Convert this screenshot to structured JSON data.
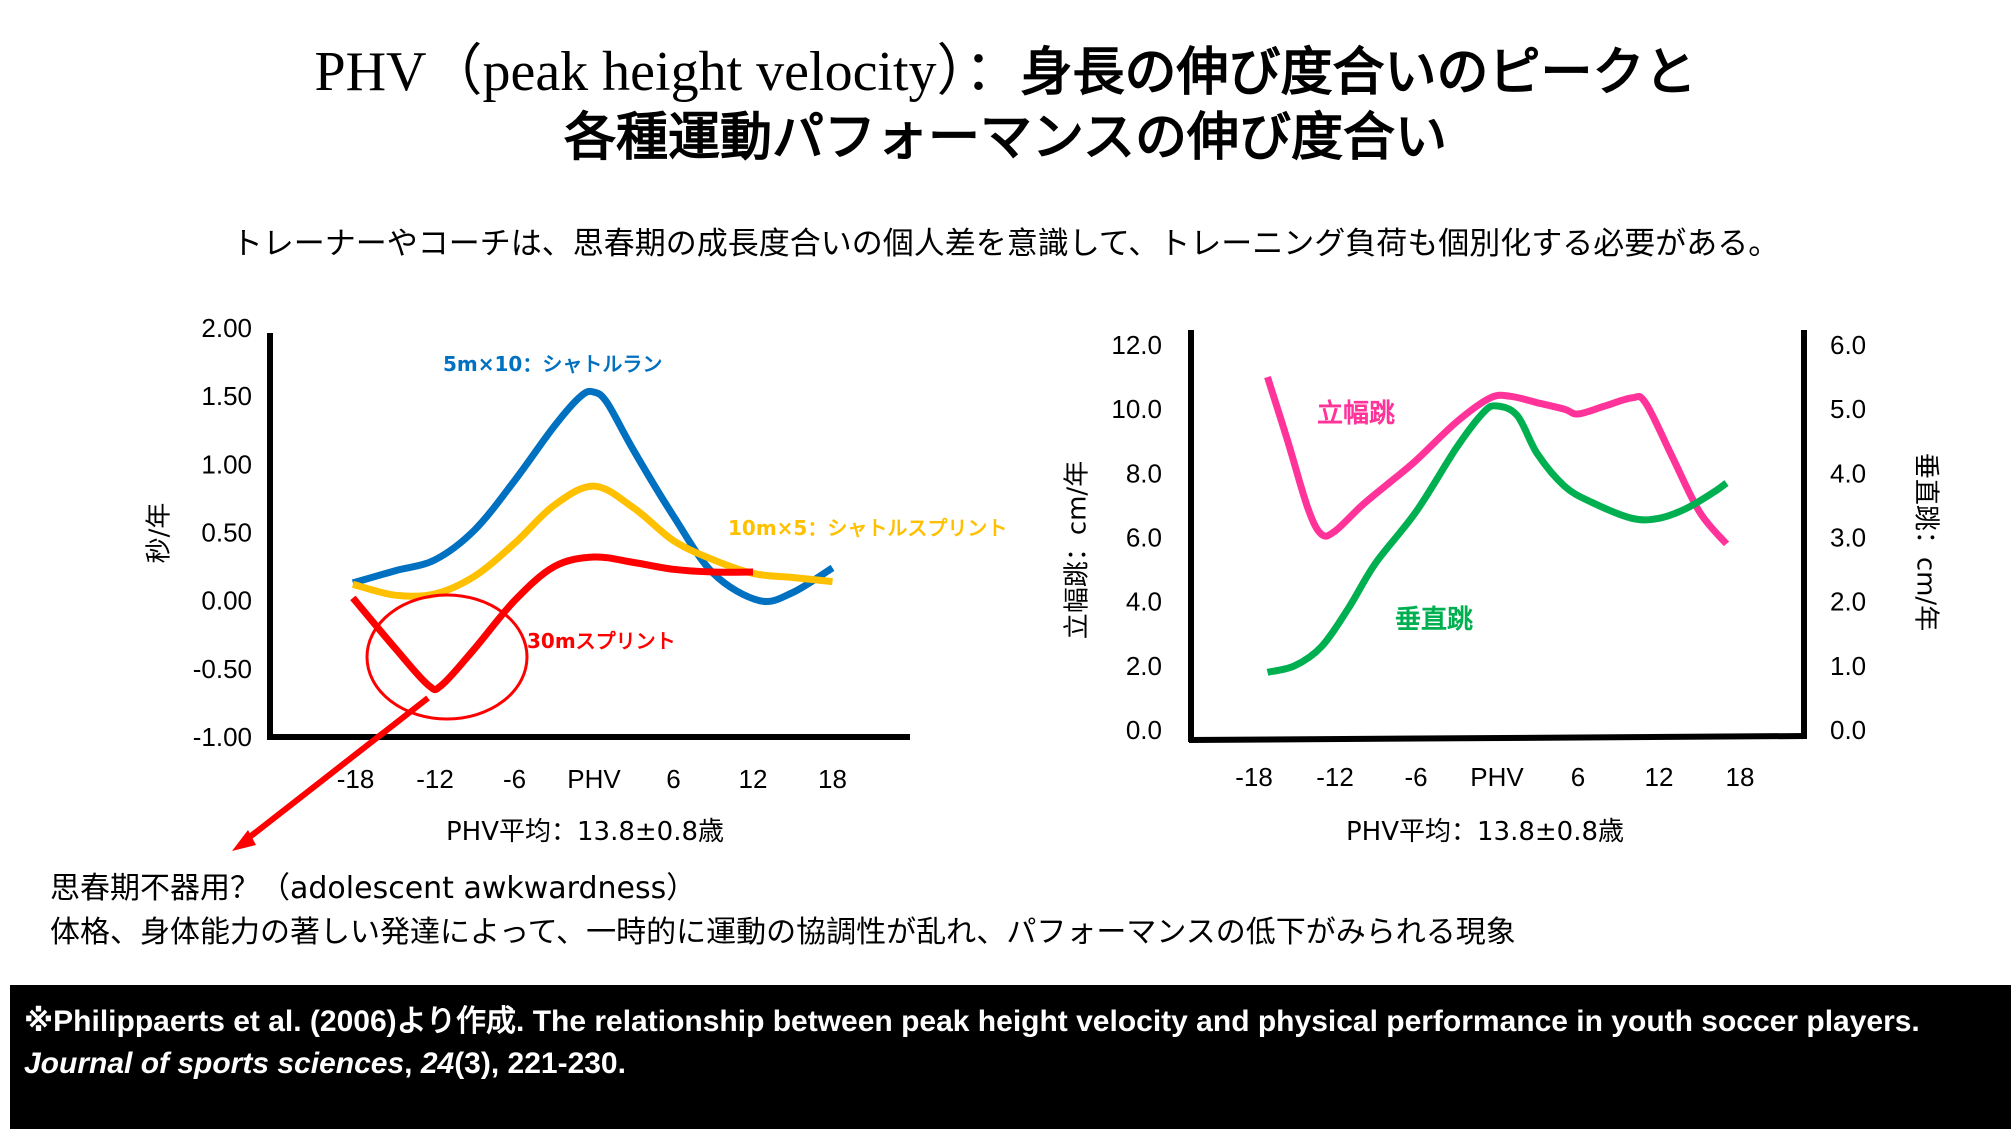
{
  "title": {
    "line1_latin": "PHV（peak height velocity）：",
    "line1_jp": "身長の伸び度合いのピークと",
    "line2": "各種運動パフォーマンスの伸び度合い"
  },
  "subtitle": "トレーナーやコーチは、思春期の成長度合いの個人差を意識して、トレーニング負荷も個別化する必要がある。",
  "notes": {
    "line1": "思春期不器用？（adolescent awkwardness）",
    "line2": "体格、身体能力の著しい発達によって、一時的に運動の協調性が乱れ、パフォーマンスの低下がみられる現象"
  },
  "footer": {
    "part1": "※Philippaerts et al. (2006)より作成. The relationship between peak height velocity and physical performance in youth soccer players. ",
    "journal": "Journal of sports sciences",
    "part2": ", ",
    "volume": "24",
    "part3": "(3), 221-230."
  },
  "chart_data": [
    {
      "type": "line",
      "title": "",
      "ylabel": "秒/年",
      "xlabel": "PHV平均：13.8±0.8歳",
      "x_ticks": [
        -18,
        -12,
        -6,
        0,
        6,
        12,
        18
      ],
      "x_tick_labels": [
        "-18",
        "-12",
        "-6",
        "PHV",
        "6",
        "12",
        "18"
      ],
      "y_ticks": [
        2.0,
        1.5,
        1.0,
        0.5,
        0.0,
        -0.5,
        -1.0
      ],
      "y_tick_labels": [
        "2.00",
        "1.50",
        "1.00",
        "0.50",
        "0.00",
        "-0.50",
        "-1.00"
      ],
      "ylim": [
        -1.0,
        2.0
      ],
      "xlim": [
        -24,
        24
      ],
      "grid": false,
      "series": [
        {
          "name": "5m×10：シャトルラン",
          "color": "#0070C0",
          "x": [
            -18.2,
            -15,
            -12,
            -9,
            -6,
            -3,
            -1,
            0,
            1,
            3,
            6,
            9,
            12.5,
            15,
            18
          ],
          "values": [
            0.13,
            0.22,
            0.3,
            0.52,
            0.88,
            1.28,
            1.5,
            1.53,
            1.45,
            1.1,
            0.62,
            0.2,
            0.0,
            0.06,
            0.24
          ]
        },
        {
          "name": "10m×5：シャトルスプリント",
          "color": "#FFC000",
          "x": [
            -18.2,
            -15,
            -12,
            -9,
            -6,
            -3,
            0,
            3,
            6,
            9,
            12,
            15,
            18
          ],
          "values": [
            0.12,
            0.04,
            0.05,
            0.18,
            0.42,
            0.7,
            0.84,
            0.68,
            0.44,
            0.3,
            0.2,
            0.17,
            0.14
          ]
        },
        {
          "name": "30mスプリント",
          "color": "#FF0000",
          "x": [
            -18.2,
            -15,
            -12.5,
            -11.5,
            -9,
            -6,
            -3,
            0,
            3,
            6,
            9,
            12
          ],
          "values": [
            0.02,
            -0.35,
            -0.62,
            -0.62,
            -0.35,
            0.0,
            0.25,
            0.32,
            0.28,
            0.23,
            0.21,
            0.21
          ]
        }
      ],
      "annotations": [
        "30mスプリント dip circled (思春期不器用)"
      ]
    },
    {
      "type": "line",
      "title": "",
      "ylabel": "立幅跳：cm/年",
      "ylabel_right": "垂直跳：cm/年",
      "xlabel": "PHV平均：13.8±0.8歳",
      "x_ticks": [
        -18,
        -12,
        -6,
        0,
        6,
        12,
        18
      ],
      "x_tick_labels": [
        "-18",
        "-12",
        "-6",
        "PHV",
        "6",
        "12",
        "18"
      ],
      "y_ticks": [
        12.0,
        10.0,
        8.0,
        6.0,
        4.0,
        2.0,
        0.0
      ],
      "y_tick_labels": [
        "12.0",
        "10.0",
        "8.0",
        "6.0",
        "4.0",
        "2.0",
        "0.0"
      ],
      "y_right_ticks": [
        6.0,
        5.0,
        4.0,
        3.0,
        2.0,
        1.0,
        0.0
      ],
      "y_right_tick_labels": [
        "6.0",
        "5.0",
        "4.0",
        "3.0",
        "2.0",
        "1.0",
        "0.0"
      ],
      "ylim": [
        0.0,
        12.0
      ],
      "ylim_right": [
        0.0,
        6.0
      ],
      "xlim": [
        -24,
        24
      ],
      "grid": false,
      "series": [
        {
          "name": "立幅跳",
          "axis": "left",
          "color": "#FF3399",
          "x": [
            -17,
            -15.5,
            -14,
            -13,
            -12,
            -10,
            -8,
            -6,
            -3,
            -0.5,
            1,
            3,
            5,
            6,
            8,
            10,
            11,
            13,
            15,
            17
          ],
          "values": [
            11.0,
            9.0,
            6.9,
            6.1,
            6.2,
            7.0,
            7.7,
            8.4,
            9.6,
            10.35,
            10.4,
            10.2,
            10.0,
            9.85,
            10.1,
            10.35,
            10.2,
            8.5,
            6.8,
            5.8
          ]
        },
        {
          "name": "垂直跳",
          "axis": "right",
          "color": "#00B050",
          "x": [
            -17,
            -15,
            -13,
            -11,
            -9,
            -6,
            -3,
            -1,
            0,
            1.5,
            3,
            5,
            7,
            10,
            12,
            14,
            16,
            17
          ],
          "values": [
            0.9,
            1.0,
            1.3,
            1.9,
            2.6,
            3.4,
            4.4,
            4.95,
            5.05,
            4.9,
            4.3,
            3.8,
            3.55,
            3.3,
            3.3,
            3.45,
            3.7,
            3.85
          ]
        }
      ]
    }
  ]
}
